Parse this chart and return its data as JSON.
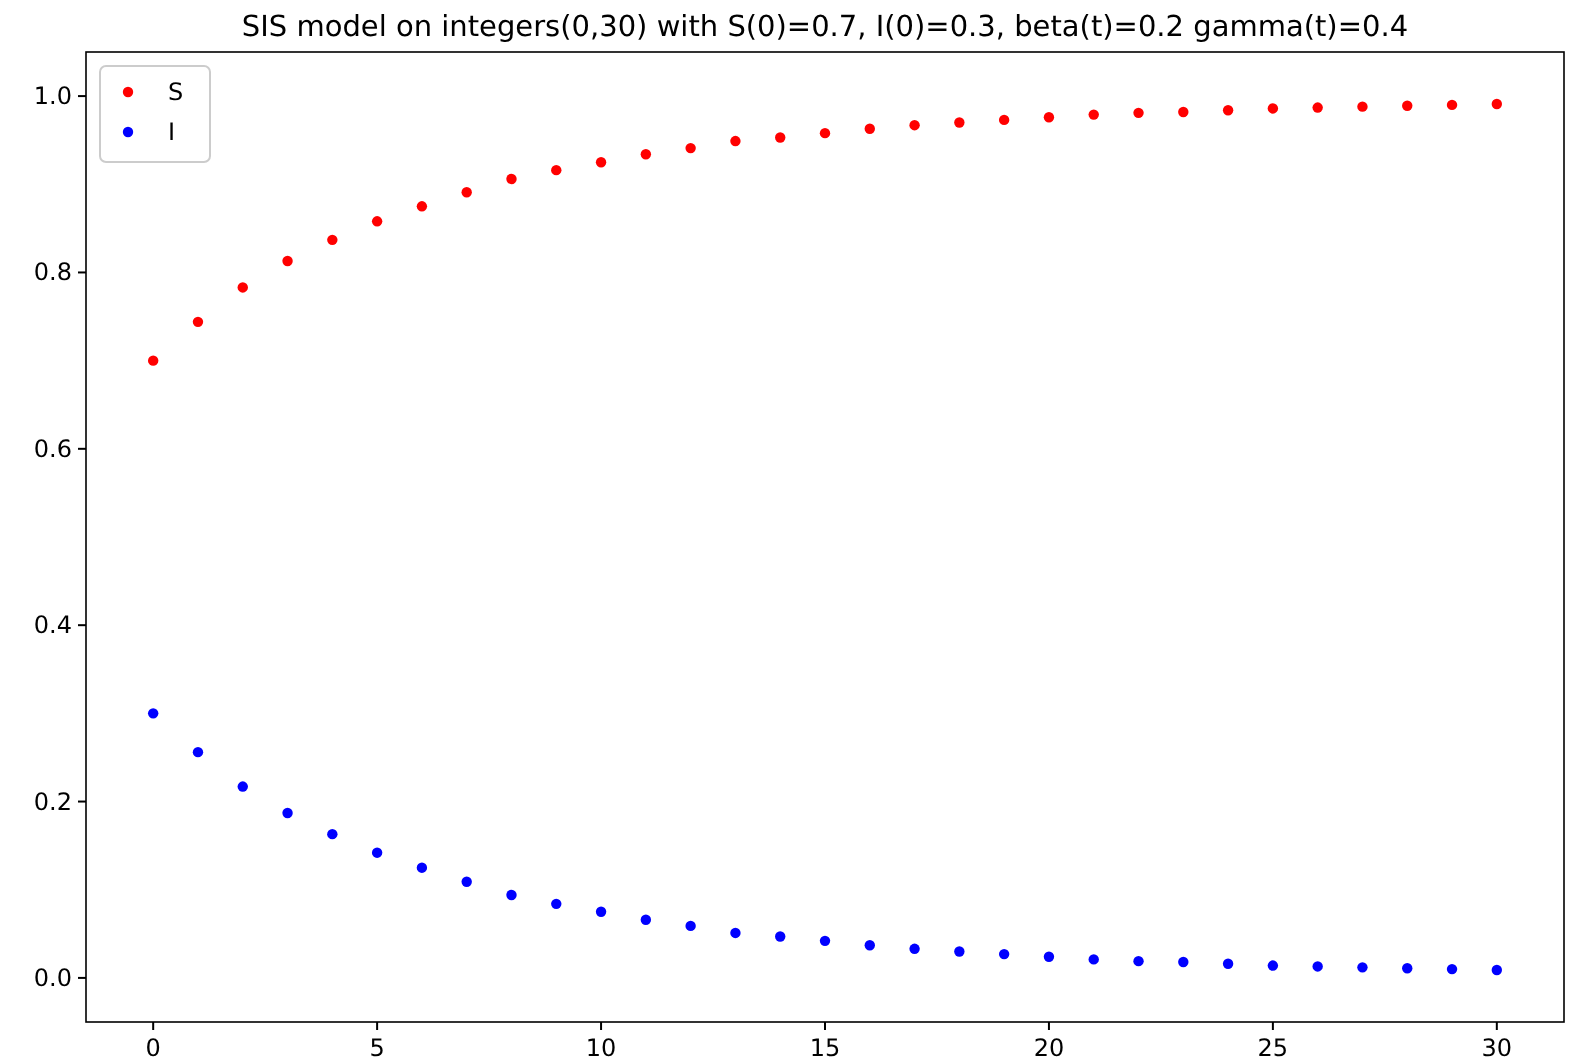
{
  "chart_data": {
    "type": "scatter",
    "title": "SIS model on integers(0,30) with S(0)=0.7, I(0)=0.3, beta(t)=0.2 gamma(t)=0.4",
    "x": [
      0,
      1,
      2,
      3,
      4,
      5,
      6,
      7,
      8,
      9,
      10,
      11,
      12,
      13,
      14,
      15,
      16,
      17,
      18,
      19,
      20,
      21,
      22,
      23,
      24,
      25,
      26,
      27,
      28,
      29,
      30
    ],
    "series": [
      {
        "name": "S",
        "color": "#ff0000",
        "values": [
          0.7,
          0.744,
          0.783,
          0.813,
          0.837,
          0.858,
          0.875,
          0.891,
          0.906,
          0.916,
          0.925,
          0.934,
          0.941,
          0.949,
          0.953,
          0.958,
          0.963,
          0.967,
          0.97,
          0.973,
          0.976,
          0.979,
          0.981,
          0.982,
          0.984,
          0.986,
          0.987,
          0.988,
          0.989,
          0.99,
          0.991
        ]
      },
      {
        "name": "I",
        "color": "#0000ff",
        "values": [
          0.3,
          0.256,
          0.217,
          0.187,
          0.163,
          0.142,
          0.125,
          0.109,
          0.094,
          0.084,
          0.075,
          0.066,
          0.059,
          0.051,
          0.047,
          0.042,
          0.037,
          0.033,
          0.03,
          0.027,
          0.024,
          0.021,
          0.019,
          0.018,
          0.016,
          0.014,
          0.013,
          0.012,
          0.011,
          0.01,
          0.009
        ]
      }
    ],
    "xlim": [
      -1.5,
      31.5
    ],
    "ylim": [
      -0.05,
      1.05
    ],
    "xticks": [
      0,
      5,
      10,
      15,
      20,
      25,
      30
    ],
    "yticks": [
      {
        "value": 0,
        "label": "0.0"
      },
      {
        "value": 0.2,
        "label": "0.2"
      },
      {
        "value": 0.4,
        "label": "0.4"
      },
      {
        "value": 0.6,
        "label": "0.6"
      },
      {
        "value": 0.8,
        "label": "0.8"
      },
      {
        "value": 1,
        "label": "1.0"
      }
    ],
    "legend": "top left",
    "marker": "circle",
    "grid": false
  }
}
